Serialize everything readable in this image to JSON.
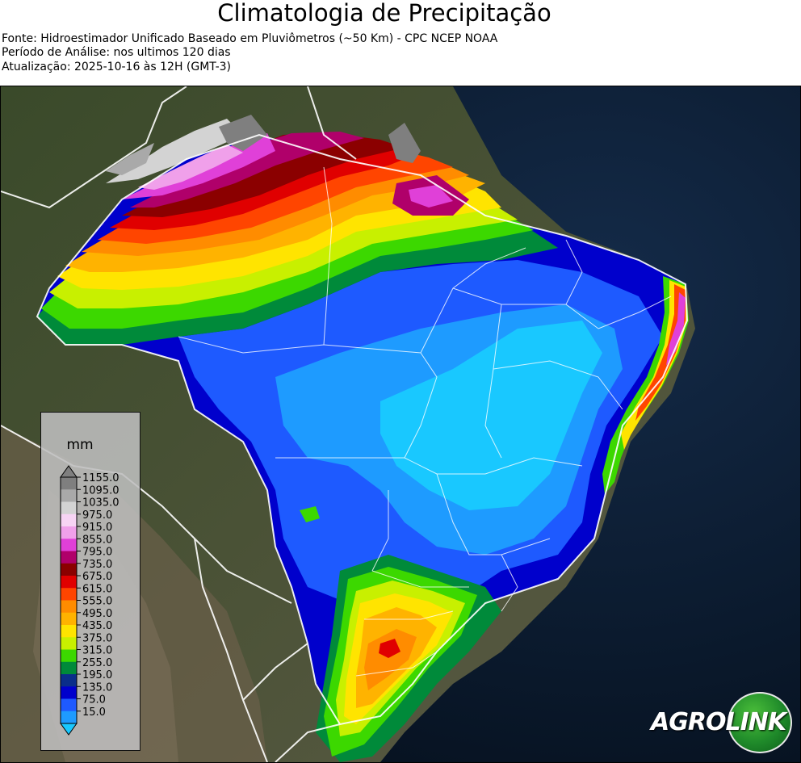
{
  "header": {
    "title": "Climatologia de Precipitação",
    "source": "Fonte: Hidroestimador Unificado Baseado em Pluviômetros (~50 Km) - CPC NCEP NOAA",
    "period": "Período de Análise: nos ultimos 120 dias",
    "updated": "Atualização: 2025-10-16 às 12H (GMT-3)"
  },
  "legend": {
    "unit": "mm",
    "levels": [
      {
        "label": "1155.0",
        "color": "#7f7f7f"
      },
      {
        "label": "1095.0",
        "color": "#a9a9a9"
      },
      {
        "label": "1035.0",
        "color": "#d3d3d3"
      },
      {
        "label": "975.0",
        "color": "#f7d4f4"
      },
      {
        "label": "915.0",
        "color": "#f0a0ea"
      },
      {
        "label": "855.0",
        "color": "#e040d8"
      },
      {
        "label": "795.0",
        "color": "#b0006a"
      },
      {
        "label": "735.0",
        "color": "#8b0000"
      },
      {
        "label": "675.0",
        "color": "#e00000"
      },
      {
        "label": "615.0",
        "color": "#ff4500"
      },
      {
        "label": "555.0",
        "color": "#ff8c00"
      },
      {
        "label": "495.0",
        "color": "#ffb300"
      },
      {
        "label": "435.0",
        "color": "#ffe400"
      },
      {
        "label": "375.0",
        "color": "#c8f000"
      },
      {
        "label": "315.0",
        "color": "#3cd800"
      },
      {
        "label": "255.0",
        "color": "#008a3a"
      },
      {
        "label": "195.0",
        "color": "#0a2e8a"
      },
      {
        "label": "135.0",
        "color": "#0000cc"
      },
      {
        "label": "75.0",
        "color": "#1e5aff"
      },
      {
        "label": "15.0",
        "color": "#1e9bff"
      }
    ],
    "below_color": "#19c8ff"
  },
  "logo": {
    "part1": "AGRO",
    "part2": "LINK"
  }
}
